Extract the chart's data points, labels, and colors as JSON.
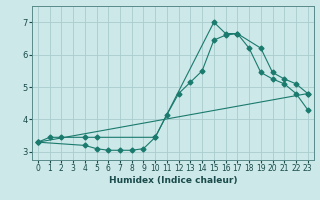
{
  "xlabel": "Humidex (Indice chaleur)",
  "background_color": "#cce8e8",
  "grid_color": "#aacccc",
  "line_color": "#1a7a6e",
  "xlim": [
    -0.5,
    23.5
  ],
  "ylim": [
    2.75,
    7.5
  ],
  "xticks": [
    0,
    1,
    2,
    3,
    4,
    5,
    6,
    7,
    8,
    9,
    10,
    11,
    12,
    13,
    14,
    15,
    16,
    17,
    18,
    19,
    20,
    21,
    22,
    23
  ],
  "yticks": [
    3,
    4,
    5,
    6,
    7
  ],
  "line1_x": [
    0,
    1,
    2,
    4,
    5,
    10,
    15,
    16,
    17,
    19,
    20,
    21,
    22,
    23
  ],
  "line1_y": [
    3.3,
    3.45,
    3.45,
    3.45,
    3.45,
    3.45,
    7.0,
    6.65,
    6.65,
    6.2,
    5.45,
    5.25,
    5.1,
    4.8
  ],
  "line2_x": [
    0,
    4,
    5,
    6,
    7,
    8,
    9,
    10,
    11,
    12,
    13,
    14,
    15,
    16,
    17,
    18,
    19,
    20,
    21,
    22,
    23
  ],
  "line2_y": [
    3.3,
    3.2,
    3.1,
    3.05,
    3.05,
    3.05,
    3.1,
    3.45,
    4.15,
    4.8,
    5.15,
    5.5,
    6.45,
    6.6,
    6.65,
    6.2,
    5.45,
    5.25,
    5.1,
    4.8,
    4.3
  ],
  "line3_x": [
    0,
    23
  ],
  "line3_y": [
    3.3,
    4.8
  ]
}
